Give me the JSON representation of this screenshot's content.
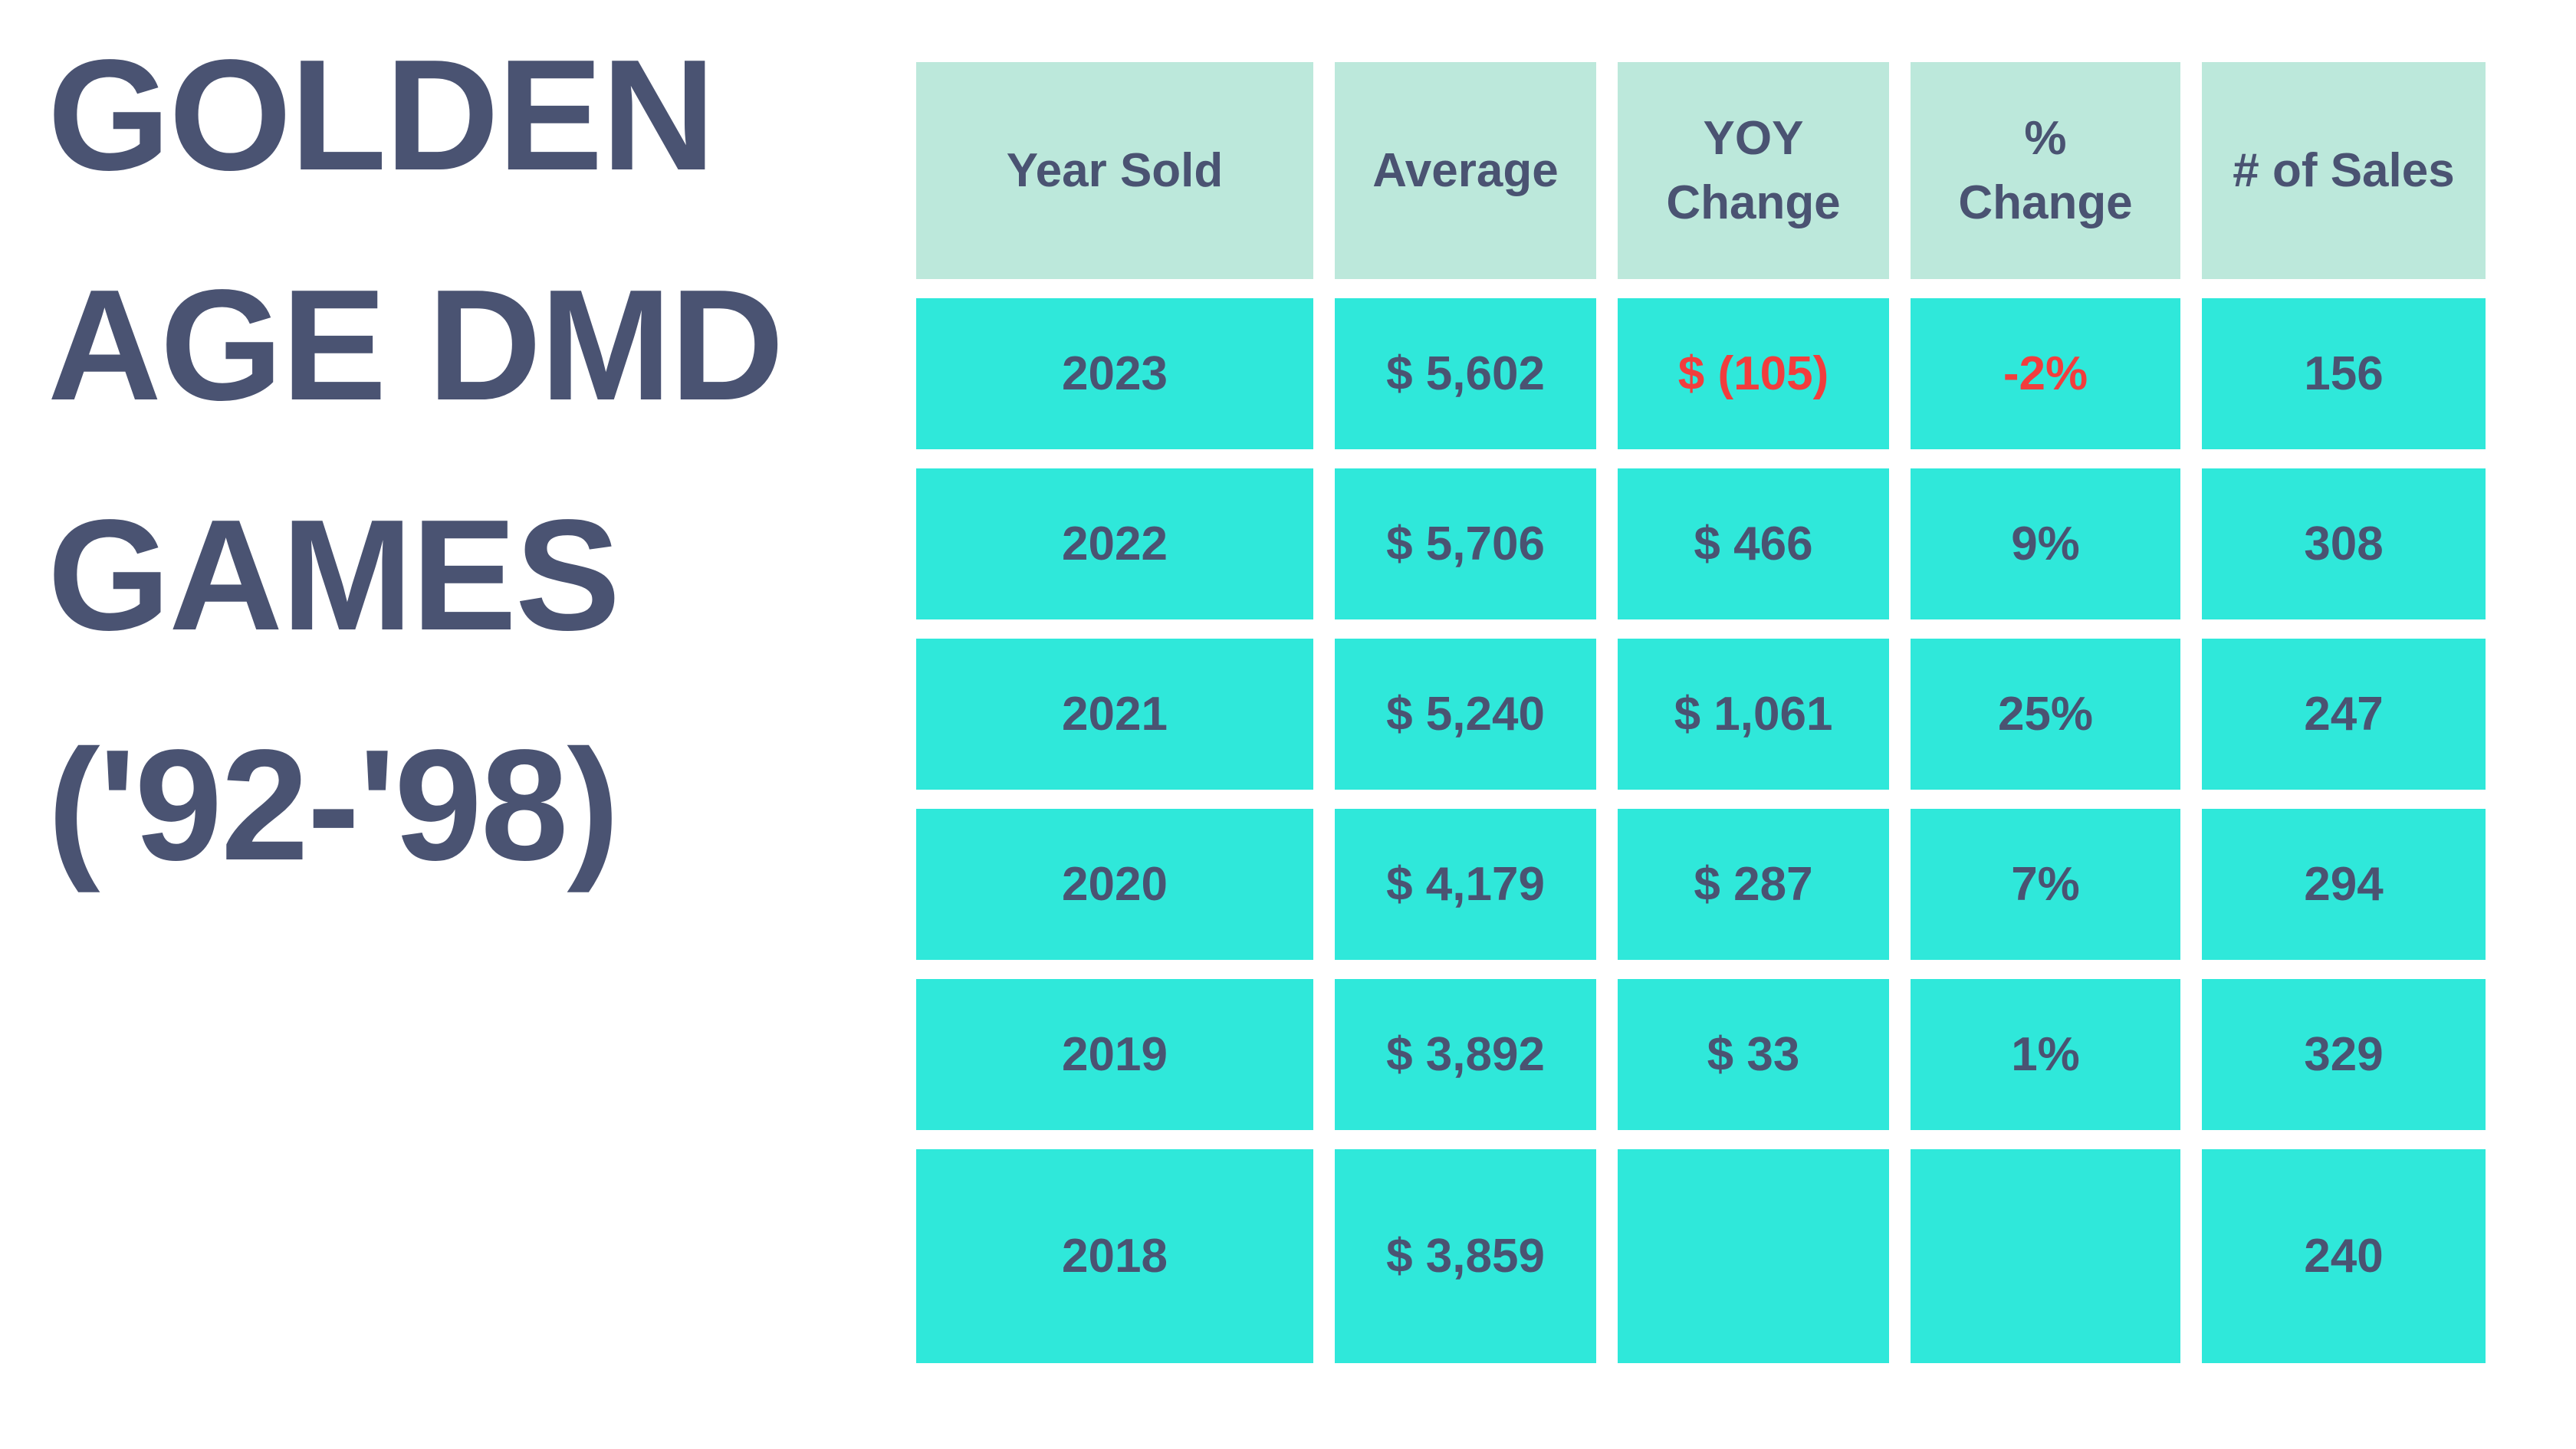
{
  "colors": {
    "background": "#ffffff",
    "text": "#4a5372",
    "negative": "#f23d3d",
    "header_bg": "#bce8db",
    "cell_bg": "#2fe8da"
  },
  "title": {
    "lines": [
      "GOLDEN",
      "AGE DMD",
      "GAMES",
      "('92-'98)"
    ]
  },
  "table": {
    "columns": [
      "Year Sold",
      "Average",
      "YOY\nChange",
      "%\nChange",
      "# of Sales"
    ],
    "rows": [
      {
        "cells": [
          "2023",
          "$ 5,602",
          "$ (105)",
          "-2%",
          "156"
        ]
      },
      {
        "cells": [
          "2022",
          "$ 5,706",
          "$ 466",
          "9%",
          "308"
        ]
      },
      {
        "cells": [
          "2021",
          "$ 5,240",
          "$ 1,061",
          "25%",
          "247"
        ]
      },
      {
        "cells": [
          "2020",
          "$ 4,179",
          "$ 287",
          "7%",
          "294"
        ]
      },
      {
        "cells": [
          "2019",
          "$ 3,892",
          "$ 33",
          "1%",
          "329"
        ]
      },
      {
        "cells": [
          "2018",
          "$ 3,859",
          "",
          "",
          "240"
        ]
      }
    ]
  },
  "chart_data": {
    "type": "table",
    "title": "GOLDEN AGE DMD GAMES ('92-'98)",
    "columns": [
      "Year Sold",
      "Average",
      "YOY Change",
      "% Change",
      "# of Sales"
    ],
    "rows": [
      [
        "2023",
        "$ 5,602",
        "$ (105)",
        "-2%",
        "156"
      ],
      [
        "2022",
        "$ 5,706",
        "$ 466",
        "9%",
        "308"
      ],
      [
        "2021",
        "$ 5,240",
        "$ 1,061",
        "25%",
        "247"
      ],
      [
        "2020",
        "$ 4,179",
        "$ 287",
        "7%",
        "294"
      ],
      [
        "2019",
        "$ 3,892",
        "$ 33",
        "1%",
        "329"
      ],
      [
        "2018",
        "$ 3,859",
        "",
        "",
        "240"
      ]
    ],
    "numeric": {
      "years": [
        2023,
        2022,
        2021,
        2020,
        2019,
        2018
      ],
      "average_usd": [
        5602,
        5706,
        5240,
        4179,
        3892,
        3859
      ],
      "yoy_change_usd": [
        -105,
        466,
        1061,
        287,
        33,
        null
      ],
      "pct_change": [
        -2,
        9,
        25,
        7,
        1,
        null
      ],
      "num_sales": [
        156,
        308,
        247,
        294,
        329,
        240
      ]
    },
    "negative_value_color": "#f23d3d",
    "layout": {
      "title_position": "left",
      "grid": "spaced-cells"
    }
  }
}
